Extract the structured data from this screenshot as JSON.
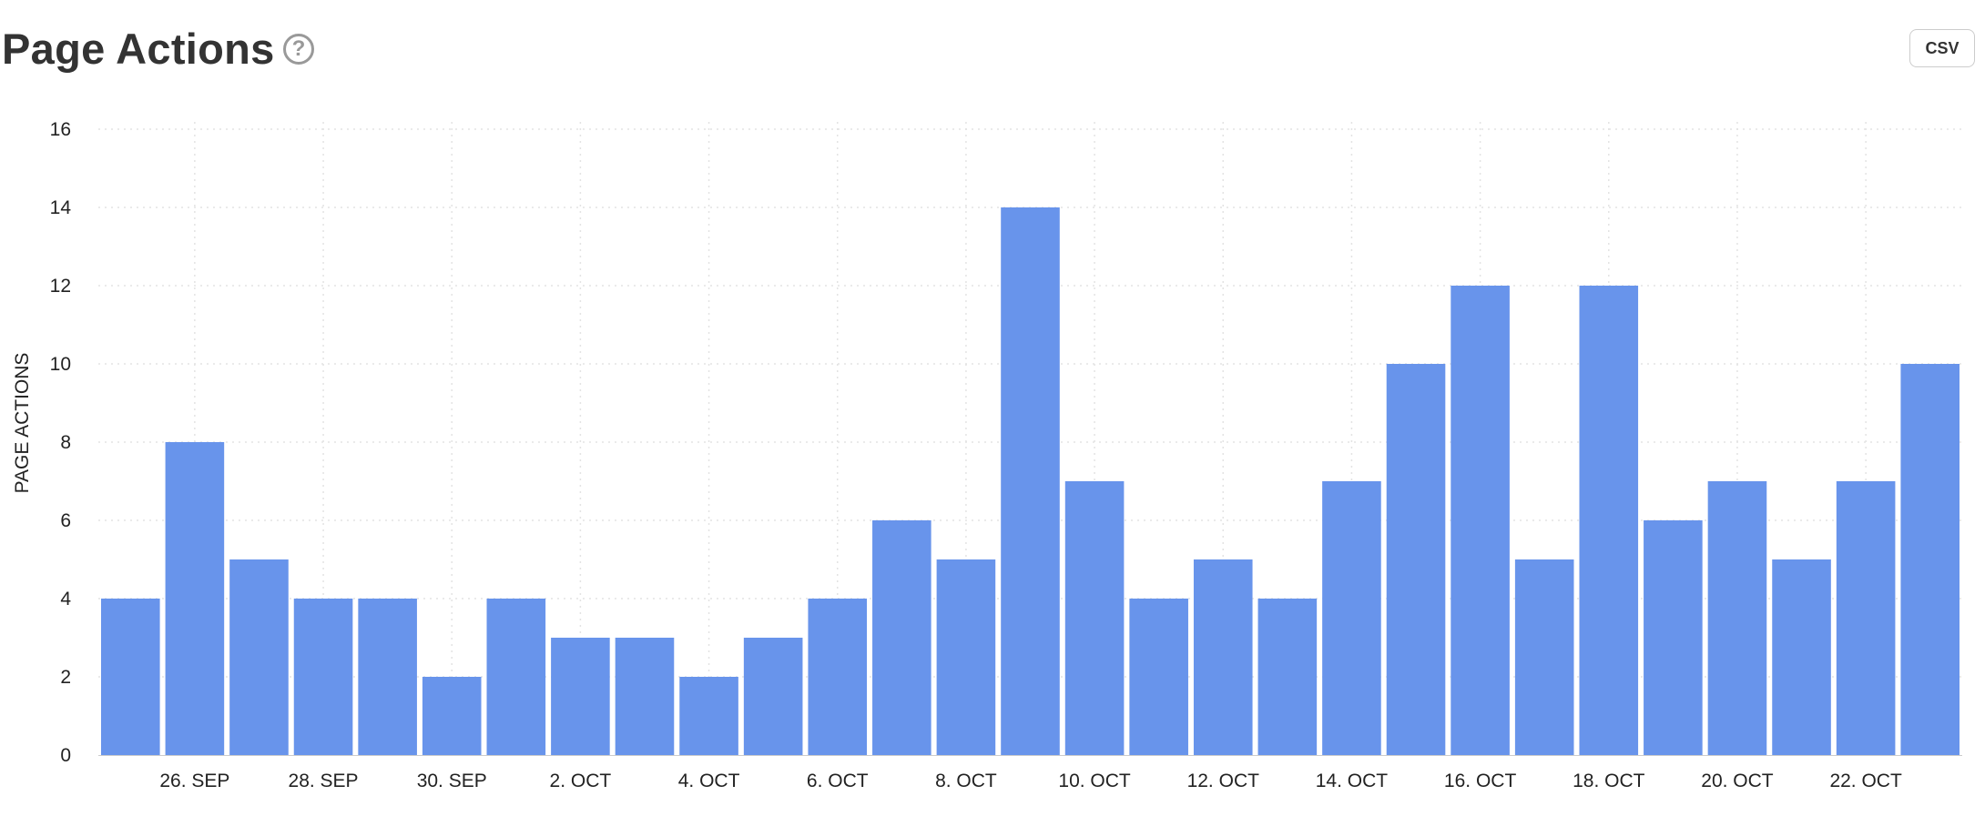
{
  "header": {
    "title": "Page Actions",
    "help_icon": "question-mark-circle-icon",
    "csv_label": "CSV"
  },
  "chart_data": {
    "type": "bar",
    "title": "",
    "xlabel": "",
    "ylabel": "PAGE ACTIONS",
    "ylim": [
      0,
      16
    ],
    "yticks": [
      0,
      2,
      4,
      6,
      8,
      10,
      12,
      14,
      16
    ],
    "grid": true,
    "bar_color": "#6894eb",
    "categories": [
      "25. SEP",
      "26. SEP",
      "27. SEP",
      "28. SEP",
      "29. SEP",
      "30. SEP",
      "1. OCT",
      "2. OCT",
      "3. OCT",
      "4. OCT",
      "5. OCT",
      "6. OCT",
      "7. OCT",
      "8. OCT",
      "9. OCT",
      "10. OCT",
      "11. OCT",
      "12. OCT",
      "13. OCT",
      "14. OCT",
      "15. OCT",
      "16. OCT",
      "17. OCT",
      "18. OCT",
      "19. OCT",
      "20. OCT",
      "21. OCT",
      "22. OCT",
      "23. OCT"
    ],
    "values": [
      4,
      8,
      5,
      4,
      4,
      2,
      4,
      3,
      3,
      2,
      3,
      4,
      6,
      5,
      14,
      7,
      4,
      5,
      4,
      7,
      10,
      12,
      5,
      12,
      6,
      7,
      5,
      7,
      10
    ],
    "x_tick_labels": [
      "26. SEP",
      "28. SEP",
      "30. SEP",
      "2. OCT",
      "4. OCT",
      "6. OCT",
      "8. OCT",
      "10. OCT",
      "12. OCT",
      "14. OCT",
      "16. OCT",
      "18. OCT",
      "20. OCT",
      "22. OCT"
    ]
  }
}
